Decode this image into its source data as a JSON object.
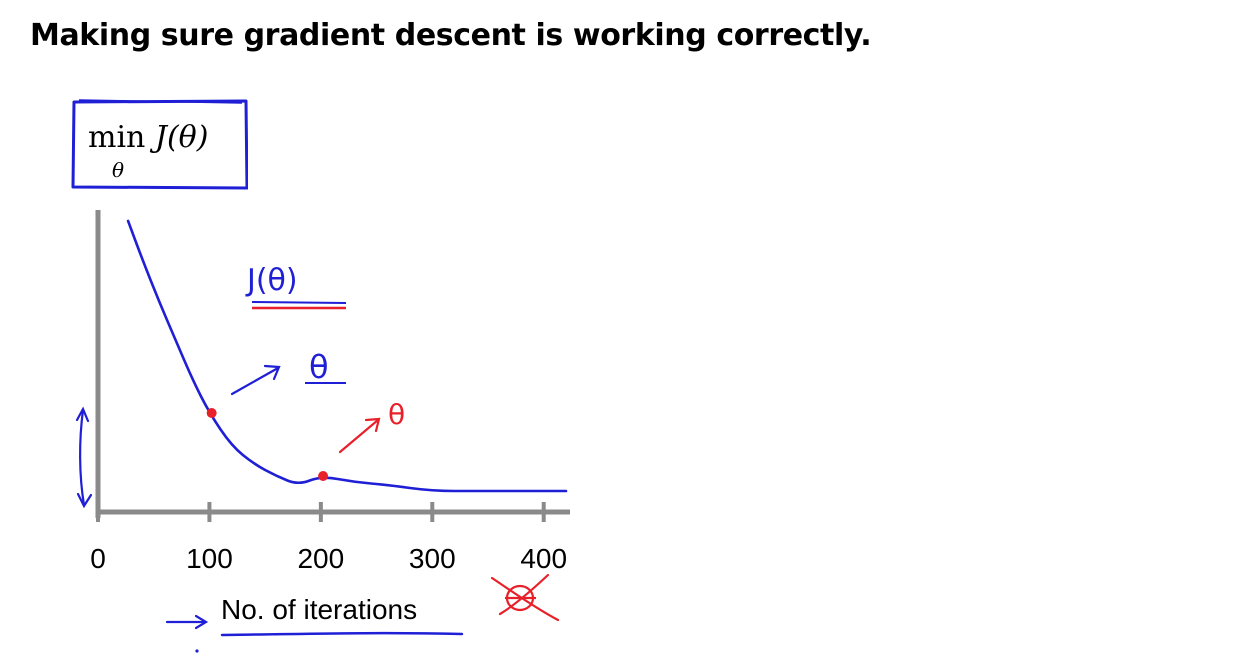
{
  "slide": {
    "title": "Making sure gradient descent is working correctly."
  },
  "objective": {
    "main": "min",
    "function": "J(θ)",
    "subscript": "θ"
  },
  "annotations": {
    "curve_label": "J(θ)",
    "theta_blue": "θ",
    "theta_red": "θ",
    "ink_colors": {
      "blue": "#1f1fd6",
      "red": "#e8202a"
    }
  },
  "chart_data": {
    "type": "line",
    "title": "",
    "xlabel": "No. of iterations",
    "ylabel": "",
    "xlim": [
      0,
      420
    ],
    "ylim": [
      0,
      1
    ],
    "grid": false,
    "xticks": [
      0,
      100,
      200,
      300,
      400
    ],
    "x_tick_labels": [
      "0",
      "100",
      "200",
      "300",
      "400"
    ],
    "series": [
      {
        "name": "J(θ)",
        "color": "#1f1fd6",
        "x": [
          27,
          40,
          55,
          70,
          85,
          100,
          120,
          140,
          160,
          180,
          200,
          230,
          260,
          300,
          340,
          380,
          420
        ],
        "y": [
          0.97,
          0.84,
          0.7,
          0.57,
          0.44,
          0.33,
          0.22,
          0.16,
          0.12,
          0.09,
          0.12,
          0.1,
          0.09,
          0.07,
          0.07,
          0.07,
          0.07
        ]
      }
    ],
    "highlighted_points": [
      {
        "x": 102,
        "y": 0.33,
        "color": "#e8202a"
      },
      {
        "x": 202,
        "y": 0.12,
        "color": "#e8202a"
      }
    ]
  }
}
